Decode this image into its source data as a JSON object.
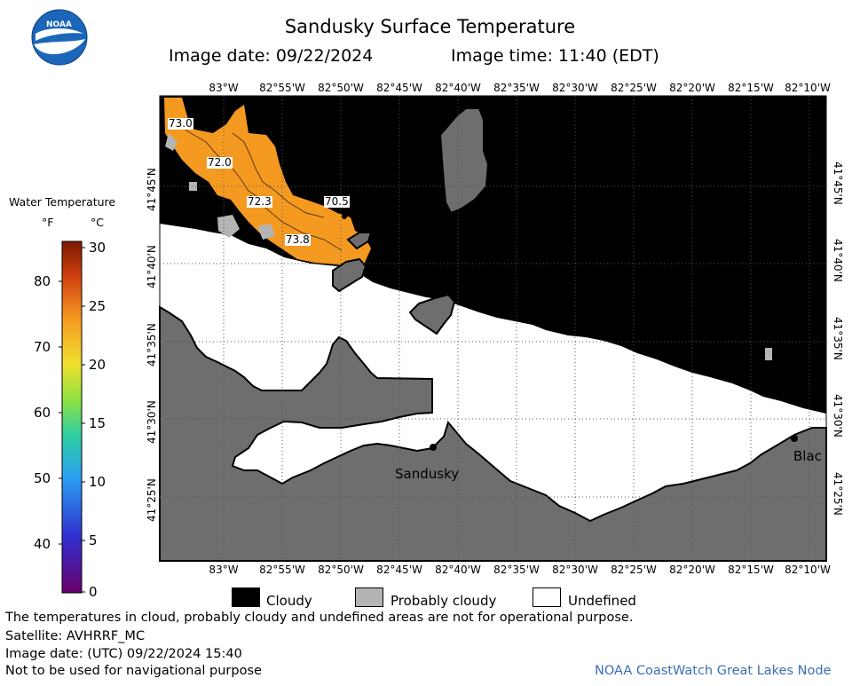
{
  "header": {
    "title": "Sandusky Surface Temperature",
    "image_date": "Image date: 09/22/2024",
    "image_time": "Image time: 11:40 (EDT)"
  },
  "logo": {
    "text": "NOAA"
  },
  "map": {
    "lon_labels": [
      "83°W",
      "82°55'W",
      "82°50'W",
      "82°45'W",
      "82°40'W",
      "82°35'W",
      "82°30'W",
      "82°25'W",
      "82°20'W",
      "82°15'W",
      "82°10'W"
    ],
    "lat_labels": [
      "41°45'N",
      "41°40'N",
      "41°35'N",
      "41°30'N",
      "41°25'N"
    ],
    "contour_labels": [
      "73.0",
      "72.0",
      "72.3",
      "70.5",
      "73.8"
    ],
    "cities": {
      "sandusky": "Sandusky",
      "black": "Blac"
    },
    "colors": {
      "cloudy": "#000000",
      "probably_cloudy": "#b4b4b4",
      "undefined": "#ffffff",
      "land": "#6e6e6e",
      "water_warm": "#f59a20"
    }
  },
  "legend": {
    "title": "Water Temperature",
    "unit_f": "°F",
    "unit_c": "°C",
    "fahrenheit_ticks": [
      "80",
      "70",
      "60",
      "50",
      "40"
    ],
    "celsius_ticks": [
      "30",
      "25",
      "20",
      "15",
      "10",
      "5",
      "0"
    ]
  },
  "key": {
    "cloudy": "Cloudy",
    "probably_cloudy": "Probably cloudy",
    "undefined": "Undefined"
  },
  "notes": {
    "disclaimer": "The temperatures in cloud, probably cloudy and undefined areas are not for operational purpose.",
    "satellite": "Satellite: AVHRRF_MC",
    "utc_date": "Image date: (UTC) 09/22/2024  15:40",
    "nav": "Not to be used for navigational purpose"
  },
  "credit": "NOAA CoastWatch Great Lakes Node"
}
